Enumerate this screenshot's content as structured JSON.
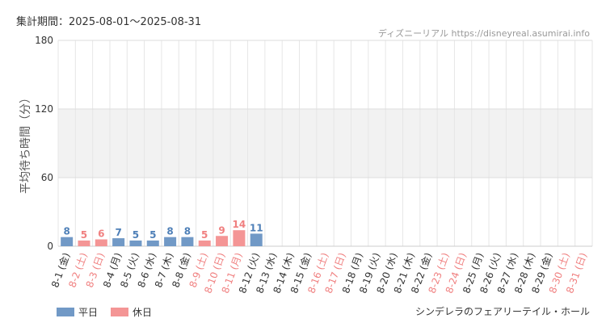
{
  "header": {
    "period": "集計期間：2025-08-01～2025-08-31",
    "source": "ディズニーリアル https://disneyreal.asumirai.info"
  },
  "footer": {
    "attraction": "シンデレラのフェアリーテイル・ホール"
  },
  "colors": {
    "weekday": "#7199c6",
    "holiday": "#f49595",
    "weekday_label": "#4f80b8",
    "holiday_label": "#f08080"
  },
  "chart_data": {
    "type": "bar",
    "ylabel": "平均待ち時間（分）",
    "ylim": [
      0,
      180
    ],
    "yticks": [
      0,
      60,
      120,
      180
    ],
    "legend": [
      {
        "name": "平日",
        "key": "weekday"
      },
      {
        "name": "休日",
        "key": "holiday"
      }
    ],
    "categories": [
      "8-1 (金)",
      "8-2 (土)",
      "8-3 (日)",
      "8-4 (月)",
      "8-5 (火)",
      "8-6 (水)",
      "8-7 (木)",
      "8-8 (金)",
      "8-9 (土)",
      "8-10 (日)",
      "8-11 (月)",
      "8-12 (火)",
      "8-13 (水)",
      "8-14 (木)",
      "8-15 (金)",
      "8-16 (土)",
      "8-17 (日)",
      "8-18 (月)",
      "8-19 (火)",
      "8-20 (水)",
      "8-21 (木)",
      "8-22 (金)",
      "8-23 (土)",
      "8-24 (日)",
      "8-25 (月)",
      "8-26 (火)",
      "8-27 (水)",
      "8-28 (木)",
      "8-29 (金)",
      "8-30 (土)",
      "8-31 (日)"
    ],
    "holiday": [
      false,
      true,
      true,
      false,
      false,
      false,
      false,
      false,
      true,
      true,
      true,
      false,
      false,
      false,
      false,
      true,
      true,
      false,
      false,
      false,
      false,
      false,
      true,
      true,
      false,
      false,
      false,
      false,
      false,
      true,
      true
    ],
    "values": [
      8,
      5,
      6,
      7,
      5,
      5,
      8,
      8,
      5,
      9,
      14,
      11,
      null,
      null,
      null,
      null,
      null,
      null,
      null,
      null,
      null,
      null,
      null,
      null,
      null,
      null,
      null,
      null,
      null,
      null,
      null
    ]
  }
}
